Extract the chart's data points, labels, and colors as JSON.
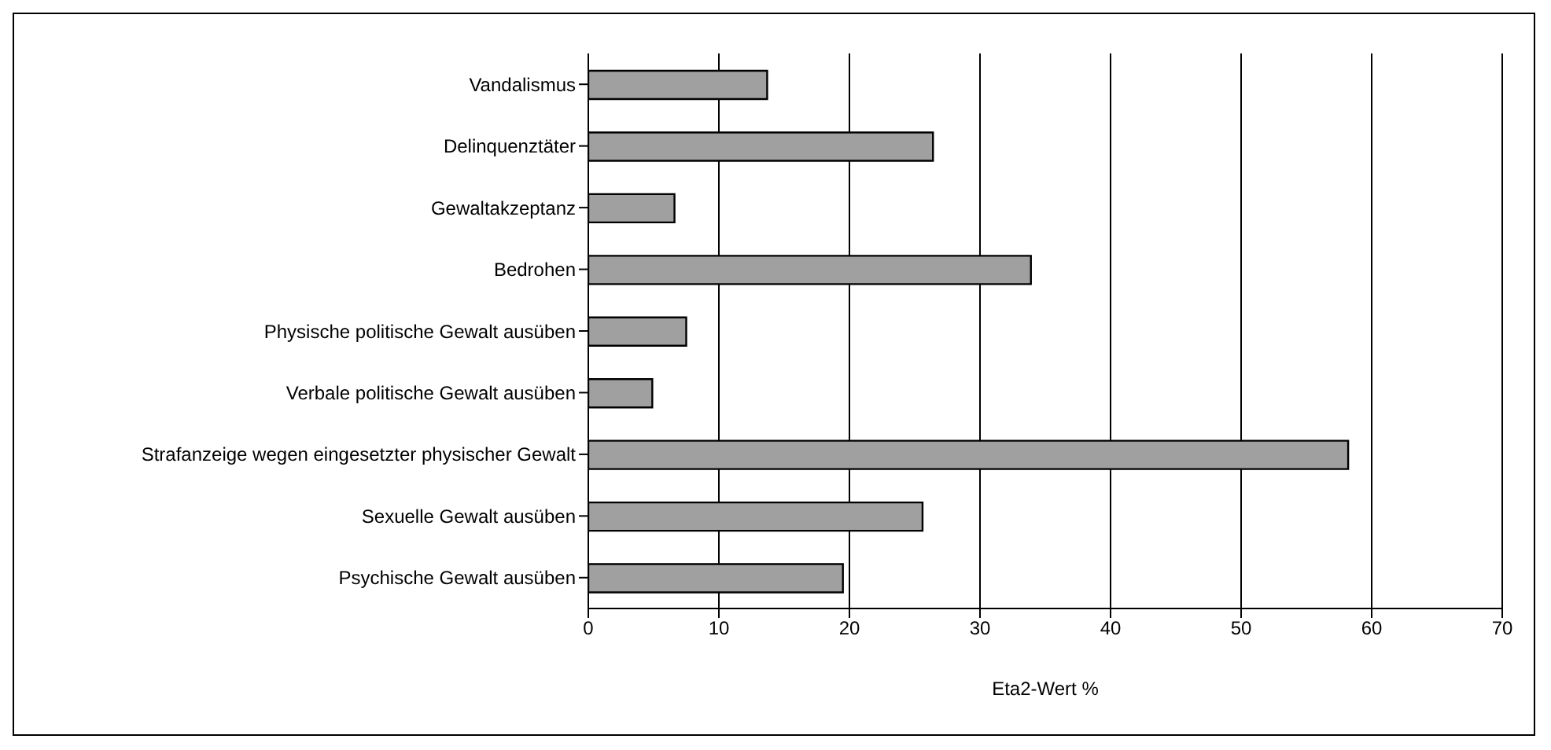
{
  "chart_data": {
    "type": "bar",
    "orientation": "horizontal",
    "xlabel": "Eta2-Wert %",
    "categories": [
      "Vandalismus",
      "Delinquenztäter",
      "Gewaltakzeptanz",
      "Bedrohen",
      "Physische politische Gewalt ausüben",
      "Verbale politische Gewalt ausüben",
      "Strafanzeige wegen eingesetzter physischer Gewalt",
      "Sexuelle Gewalt ausüben",
      "Psychische Gewalt ausüben"
    ],
    "values": [
      13.7,
      26.4,
      6.6,
      33.9,
      7.5,
      4.9,
      58.2,
      25.6,
      19.5
    ],
    "color": "#a0a0a0",
    "xlim": [
      0,
      70
    ],
    "xticks": [
      0,
      10,
      20,
      30,
      40,
      50,
      60,
      70
    ],
    "grid": "x",
    "legend": false
  }
}
